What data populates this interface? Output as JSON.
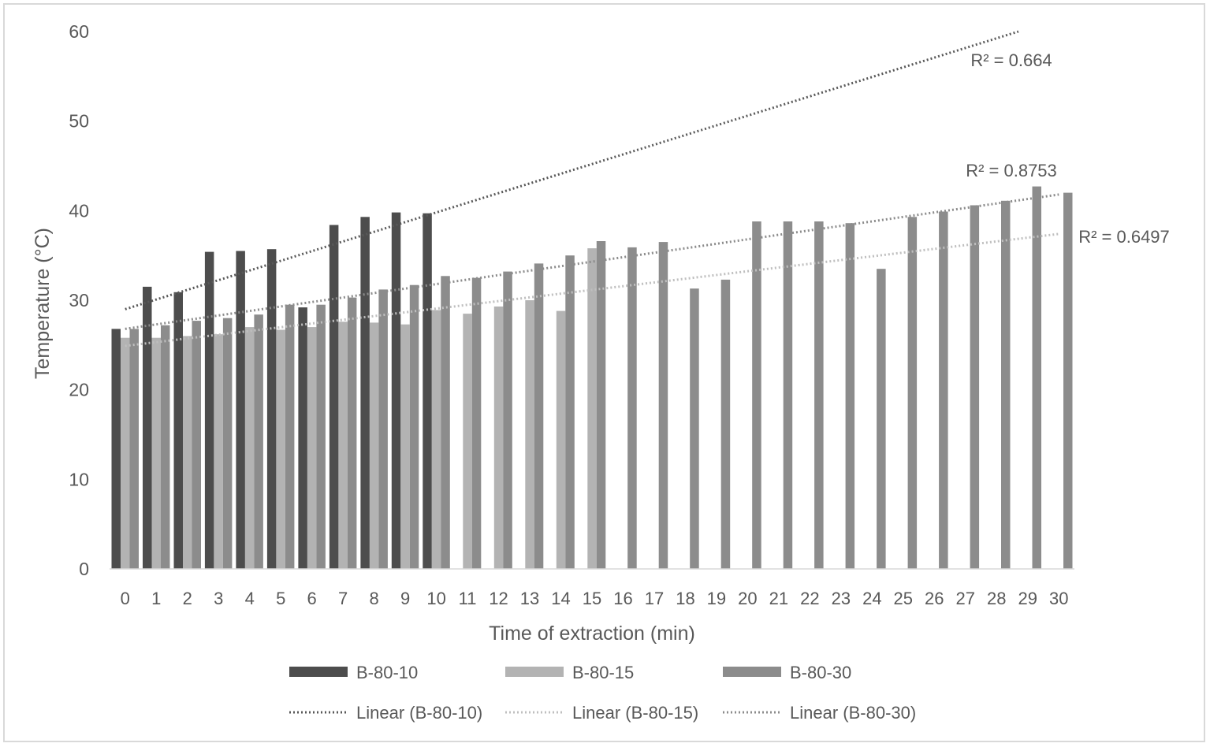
{
  "chart_data": {
    "type": "bar",
    "title": "",
    "xlabel": "Time of extraction (min)",
    "ylabel": "Temperature (°C)",
    "ylim": [
      0,
      60
    ],
    "yticks": [
      0,
      10,
      20,
      30,
      40,
      50,
      60
    ],
    "categories": [
      "0",
      "1",
      "2",
      "3",
      "4",
      "5",
      "6",
      "7",
      "8",
      "9",
      "10",
      "11",
      "12",
      "13",
      "14",
      "15",
      "16",
      "17",
      "18",
      "19",
      "20",
      "21",
      "22",
      "23",
      "24",
      "25",
      "26",
      "27",
      "28",
      "29",
      "30"
    ],
    "grid": false,
    "legend_position": "bottom",
    "series": [
      {
        "name": "B-80-10",
        "color": "#4d4d4d",
        "values": [
          26.8,
          31.5,
          30.9,
          35.4,
          35.5,
          35.7,
          29.2,
          38.4,
          39.3,
          39.8,
          39.7,
          null,
          null,
          null,
          null,
          null,
          null,
          null,
          null,
          null,
          null,
          null,
          null,
          null,
          null,
          null,
          null,
          null,
          null,
          null,
          null
        ]
      },
      {
        "name": "B-80-15",
        "color": "#b3b3b3",
        "values": [
          25.8,
          25.8,
          26.0,
          26.2,
          27.0,
          26.7,
          27.0,
          27.6,
          27.5,
          27.3,
          28.9,
          28.5,
          29.3,
          30.0,
          28.8,
          35.8,
          null,
          null,
          null,
          null,
          null,
          null,
          null,
          null,
          null,
          null,
          null,
          null,
          null,
          null,
          null
        ]
      },
      {
        "name": "B-80-30",
        "color": "#8c8c8c",
        "values": [
          26.8,
          27.2,
          27.7,
          28.0,
          28.4,
          29.5,
          29.5,
          30.3,
          31.2,
          31.7,
          32.7,
          32.5,
          33.2,
          34.1,
          35.0,
          36.6,
          35.9,
          36.5,
          31.3,
          32.3,
          38.8,
          38.8,
          38.8,
          38.6,
          33.5,
          39.3,
          39.9,
          40.6,
          41.1,
          42.7,
          42.0
        ]
      }
    ],
    "trendlines": [
      {
        "name": "Linear (B-80-10)",
        "series": "B-80-10",
        "color": "#595959",
        "start": [
          0,
          29.0
        ],
        "end": [
          28.7,
          60.0
        ],
        "r2_label": "R² = 0.664"
      },
      {
        "name": "Linear (B-80-15)",
        "series": "B-80-15",
        "color": "#bfbfbf",
        "start": [
          0,
          24.9
        ],
        "end": [
          30,
          37.4
        ],
        "r2_label": "R² = 0.6497"
      },
      {
        "name": "Linear (B-80-30)",
        "series": "B-80-30",
        "color": "#8c8c8c",
        "start": [
          0,
          26.8
        ],
        "end": [
          30,
          41.8
        ],
        "r2_label": "R² = 0.8753"
      }
    ]
  }
}
